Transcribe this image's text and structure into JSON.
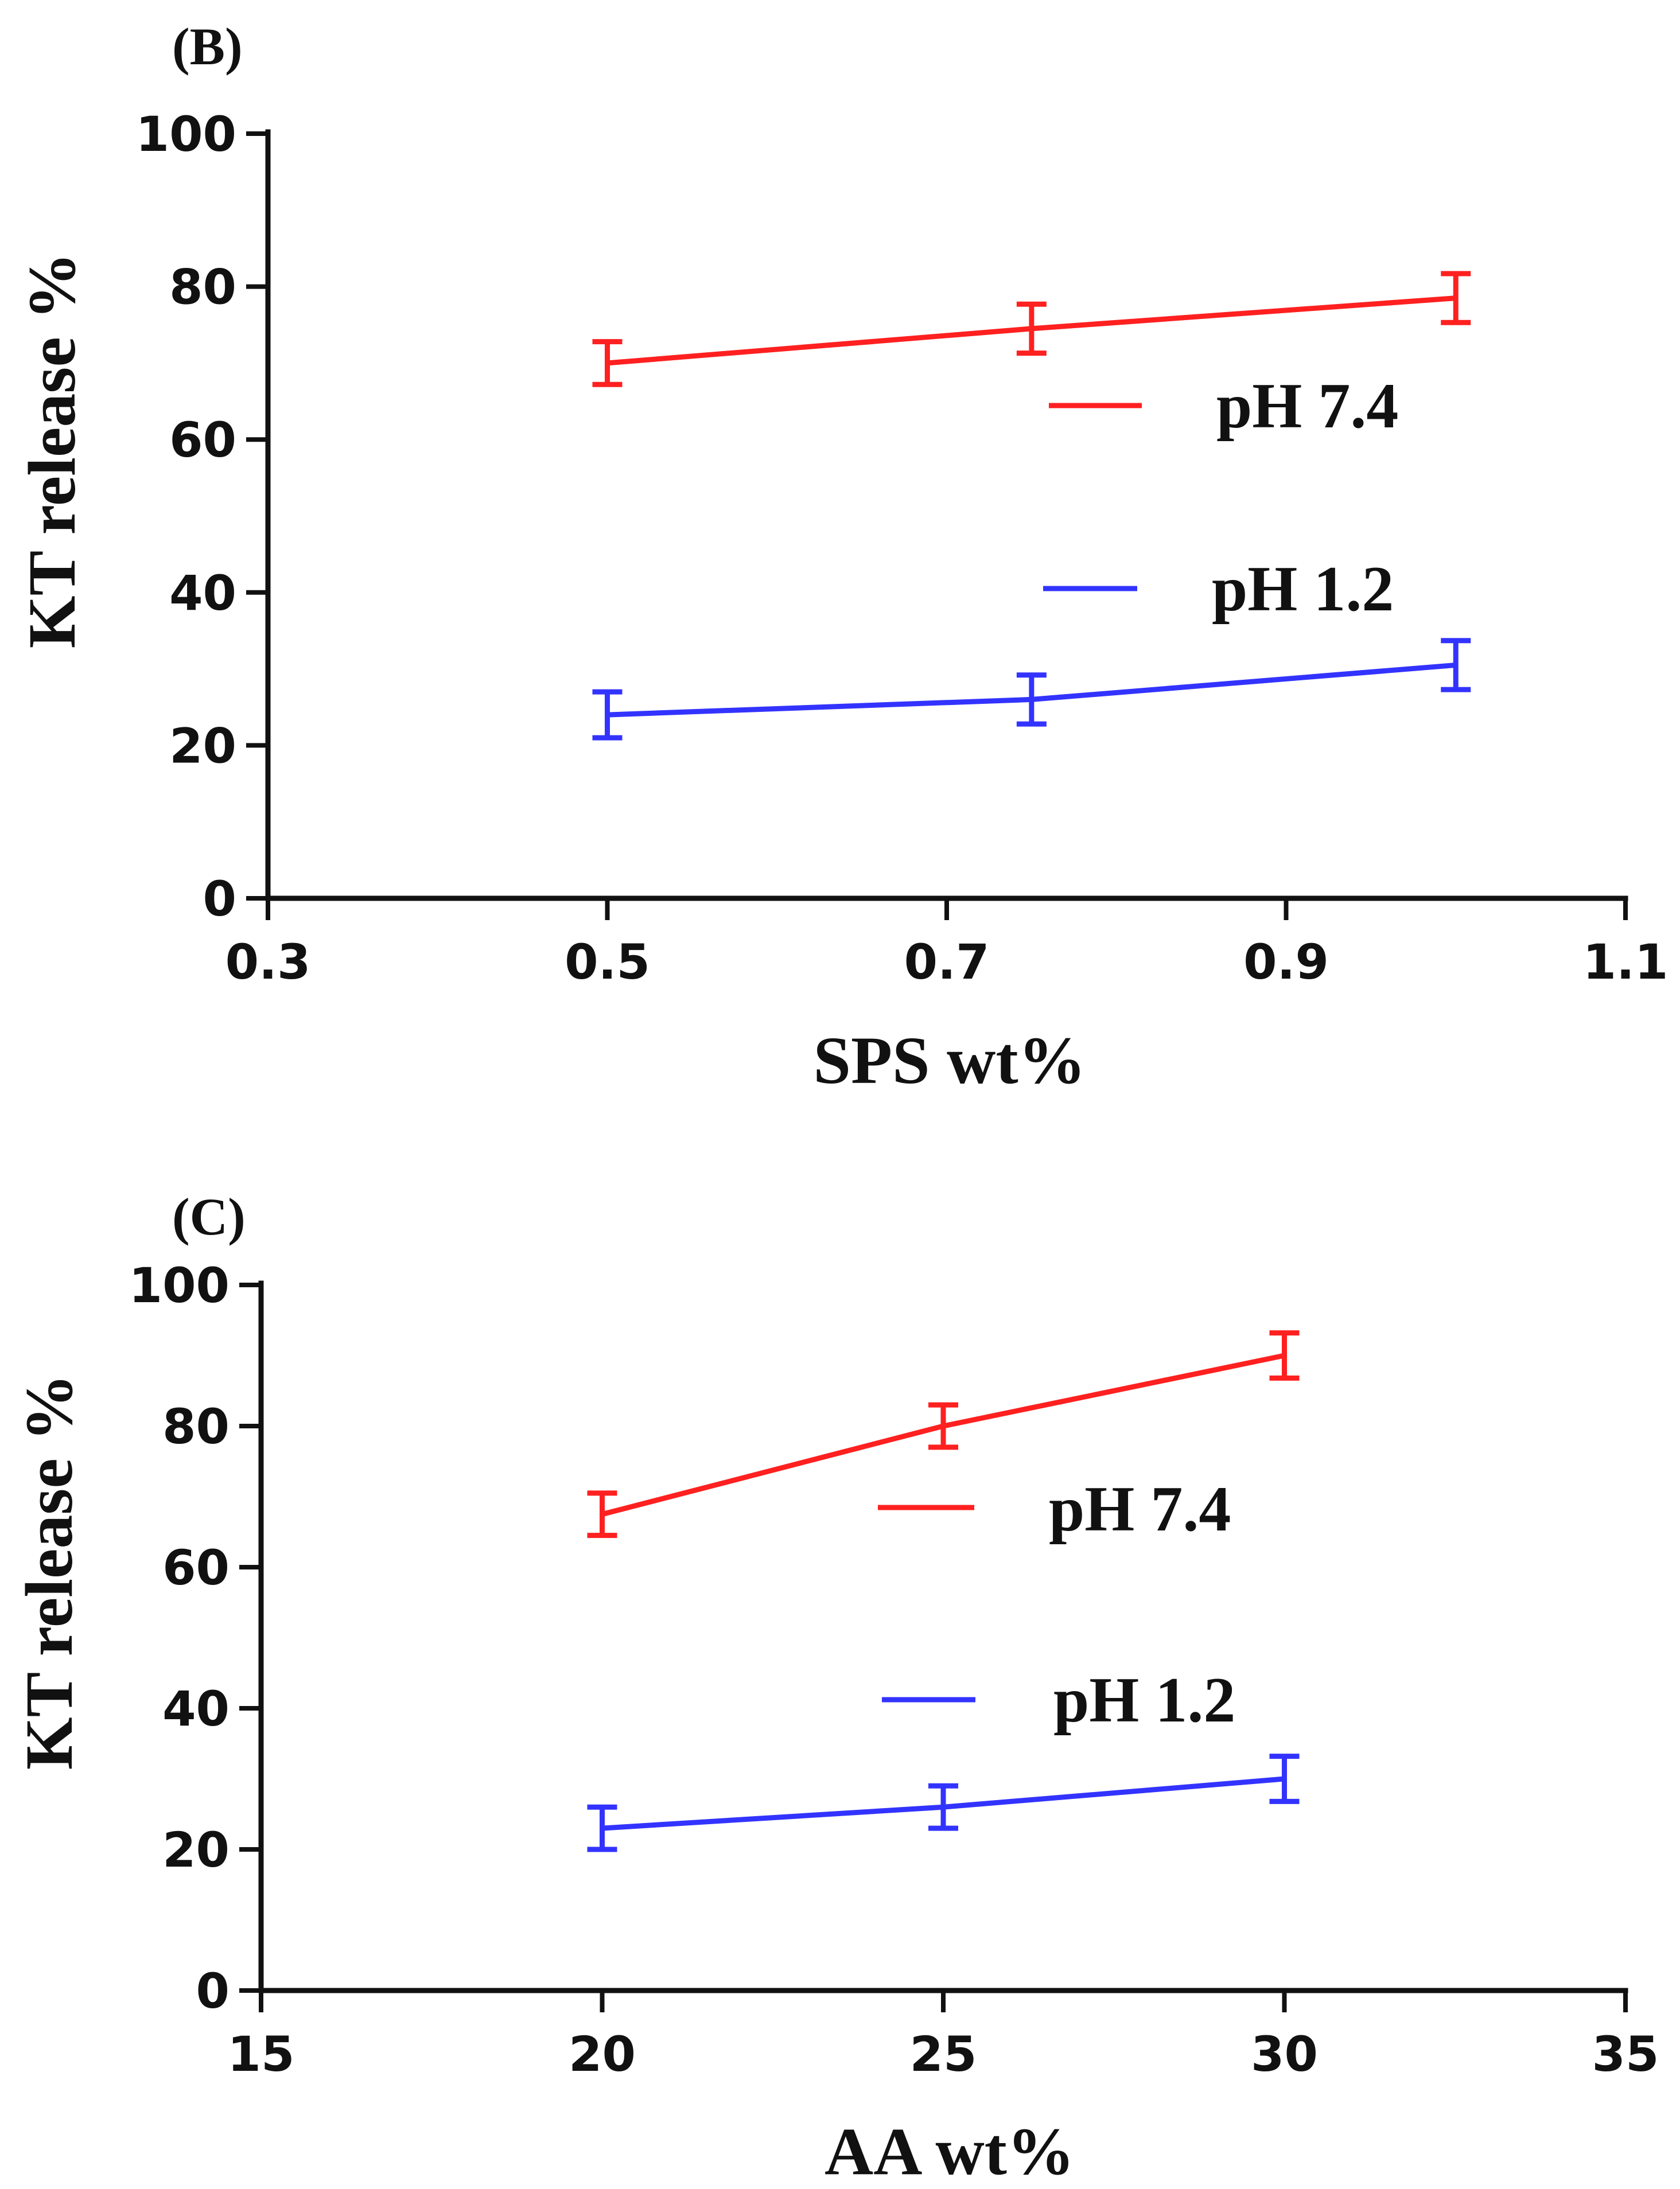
{
  "chart_data": [
    {
      "type": "line",
      "panel_label": "(B)",
      "xlabel": "SPS wt%",
      "ylabel": "KT release %",
      "xlim": [
        0.3,
        1.1
      ],
      "ylim": [
        0,
        100
      ],
      "x_ticks": [
        "0.3",
        "0.5",
        "0.7",
        "0.9",
        "1.1"
      ],
      "x_tick_values": [
        0.3,
        0.5,
        0.7,
        0.9,
        1.1
      ],
      "y_ticks": [
        "0",
        "20",
        "40",
        "60",
        "80",
        "100"
      ],
      "y_tick_values": [
        0,
        20,
        40,
        60,
        80,
        100
      ],
      "x": [
        0.5,
        0.75,
        1.0
      ],
      "series": [
        {
          "name": "pH 7.4",
          "color": "#ff2020",
          "values": [
            70,
            74.5,
            78.5
          ],
          "errors": [
            2.8,
            3.2,
            3.2
          ]
        },
        {
          "name": "pH 1.2",
          "color": "#3333ff",
          "values": [
            24,
            26,
            30.5
          ],
          "errors": [
            3.0,
            3.2,
            3.2
          ]
        }
      ]
    },
    {
      "type": "line",
      "panel_label": "(C)",
      "xlabel": "AA wt%",
      "ylabel": "KT release %",
      "xlim": [
        15,
        35
      ],
      "ylim": [
        0,
        100
      ],
      "x_ticks": [
        "15",
        "20",
        "25",
        "30",
        "35"
      ],
      "x_tick_values": [
        15,
        20,
        25,
        30,
        35
      ],
      "y_ticks": [
        "0",
        "20",
        "40",
        "60",
        "80",
        "100"
      ],
      "y_tick_values": [
        0,
        20,
        40,
        60,
        80,
        100
      ],
      "x": [
        20,
        25,
        30
      ],
      "series": [
        {
          "name": "pH 7.4",
          "color": "#ff2020",
          "values": [
            67.5,
            80,
            90
          ],
          "errors": [
            3.0,
            3.0,
            3.2
          ]
        },
        {
          "name": "pH 1.2",
          "color": "#3333ff",
          "values": [
            23,
            26,
            30
          ],
          "errors": [
            3.0,
            3.0,
            3.2
          ]
        }
      ]
    }
  ]
}
